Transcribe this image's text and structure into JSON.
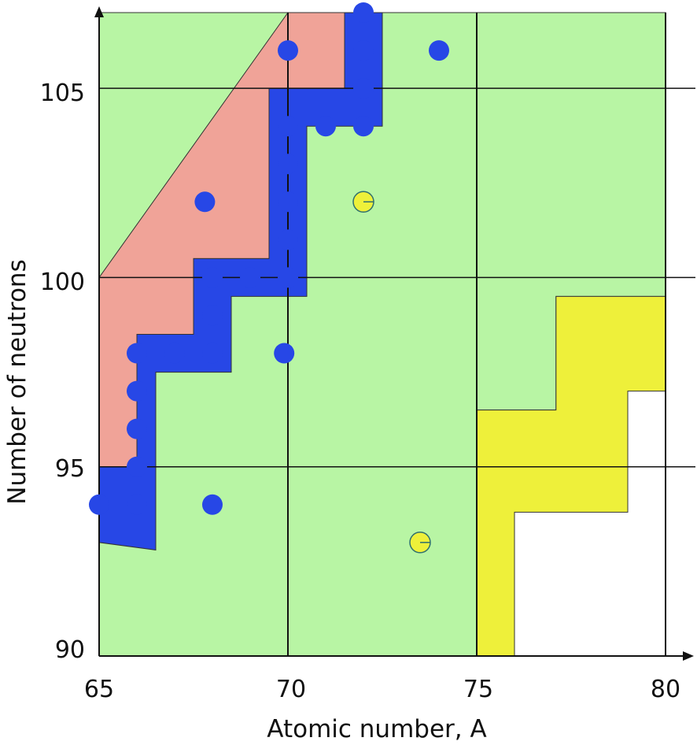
{
  "chart_data": {
    "type": "scatter",
    "xlabel": "Atomic number, A",
    "ylabel": "Number of neutrons",
    "xlim": [
      65,
      80
    ],
    "ylim": [
      90,
      107
    ],
    "x_ticks": [
      "65",
      "70",
      "75",
      "80"
    ],
    "y_ticks": [
      "90",
      "95",
      "100",
      "105"
    ],
    "grid": true,
    "colors": {
      "green_region": "#b8f5a4",
      "red_region": "#f0a398",
      "blue_band": "#a7b8f2",
      "yellow_region": "#eef03a",
      "blue_points": "#2747e6",
      "yellow_points": "#f2ec2c",
      "lines": "#111111"
    },
    "regions": [
      {
        "name": "green",
        "points": [
          [
            65,
            90
          ],
          [
            75,
            90
          ],
          [
            75,
            96.5
          ],
          [
            77.1,
            96.5
          ],
          [
            77.1,
            99.5
          ],
          [
            80,
            99.5
          ],
          [
            80,
            107
          ],
          [
            65,
            107
          ]
        ]
      },
      {
        "name": "red",
        "points": [
          [
            65,
            95
          ],
          [
            65,
            100
          ],
          [
            70,
            107
          ],
          [
            71.5,
            107
          ],
          [
            71.5,
            105
          ],
          [
            69.5,
            105
          ],
          [
            69.5,
            102
          ],
          [
            69.5,
            100.5
          ],
          [
            67.5,
            100.5
          ],
          [
            67.5,
            98.5
          ],
          [
            66,
            98.5
          ],
          [
            66,
            95
          ]
        ]
      },
      {
        "name": "blue",
        "points": [
          [
            65,
            95
          ],
          [
            65,
            93
          ],
          [
            66.5,
            92.8
          ],
          [
            66.5,
            97.5
          ],
          [
            68.5,
            97.5
          ],
          [
            68.5,
            99.5
          ],
          [
            70.5,
            99.5
          ],
          [
            70.5,
            104
          ],
          [
            72.5,
            104
          ],
          [
            72.5,
            107
          ],
          [
            71.5,
            107
          ],
          [
            71.5,
            105
          ],
          [
            69.5,
            105
          ],
          [
            69.5,
            100.5
          ],
          [
            67.5,
            100.5
          ],
          [
            67.5,
            98.5
          ],
          [
            66,
            98.5
          ],
          [
            66,
            95
          ]
        ]
      },
      {
        "name": "yellow",
        "points": [
          [
            75,
            90
          ],
          [
            76,
            90
          ],
          [
            76,
            93.8
          ],
          [
            79,
            93.8
          ],
          [
            79,
            97
          ],
          [
            80,
            97
          ],
          [
            80,
            99.5
          ],
          [
            77.1,
            99.5
          ],
          [
            77.1,
            96.5
          ],
          [
            75,
            96.5
          ]
        ]
      }
    ],
    "series": [
      {
        "color": "blue",
        "points": [
          [
            65,
            94
          ],
          [
            66,
            94
          ],
          [
            66,
            95
          ],
          [
            66,
            96
          ],
          [
            66,
            97
          ],
          [
            66,
            98
          ],
          [
            67,
            98
          ],
          [
            68,
            98
          ],
          [
            68,
            99
          ],
          [
            68,
            100
          ],
          [
            67.8,
            102
          ],
          [
            68,
            94
          ],
          [
            69,
            100
          ],
          [
            70,
            100
          ],
          [
            70,
            101
          ],
          [
            70,
            102
          ],
          [
            70,
            103
          ],
          [
            70,
            104
          ],
          [
            71,
            104
          ],
          [
            72,
            104
          ],
          [
            72,
            105
          ],
          [
            72,
            106
          ],
          [
            72,
            107
          ],
          [
            70,
            106
          ],
          [
            69.9,
            98
          ],
          [
            74,
            106
          ]
        ]
      },
      {
        "color": "yellow",
        "points": [
          [
            72,
            102
          ],
          [
            73.5,
            93
          ]
        ]
      }
    ]
  }
}
